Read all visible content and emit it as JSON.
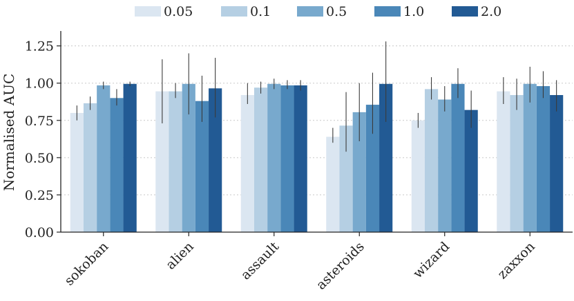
{
  "chart_data": {
    "type": "bar",
    "title": "",
    "xlabel": "",
    "ylabel": "Normalised AUC",
    "ylim": [
      0,
      1.35
    ],
    "yticks": [
      "0.00",
      "0.25",
      "0.50",
      "0.75",
      "1.00",
      "1.25"
    ],
    "ytick_values": [
      0,
      0.25,
      0.5,
      0.75,
      1.0,
      1.25
    ],
    "grid": "horizontal dotted",
    "legend_position": "top-center",
    "categories": [
      "sokoban",
      "alien",
      "assault",
      "asteroids",
      "wizard",
      "zaxxon"
    ],
    "series": [
      {
        "name": "0.05",
        "color": "#dbe6f1",
        "values": [
          0.8,
          0.945,
          0.92,
          0.64,
          0.75,
          0.945
        ],
        "err_low": [
          0.75,
          0.73,
          0.86,
          0.6,
          0.7,
          0.86
        ],
        "err_high": [
          0.85,
          1.16,
          1.0,
          0.7,
          0.8,
          1.04
        ]
      },
      {
        "name": "0.1",
        "color": "#b5cfe3",
        "values": [
          0.865,
          0.945,
          0.97,
          0.715,
          0.96,
          0.92
        ],
        "err_low": [
          0.82,
          0.9,
          0.93,
          0.54,
          0.89,
          0.82
        ],
        "err_high": [
          0.91,
          1.0,
          1.01,
          0.94,
          1.04,
          1.03
        ]
      },
      {
        "name": "0.5",
        "color": "#78a9cd",
        "values": [
          0.985,
          0.995,
          0.995,
          0.805,
          0.89,
          0.995
        ],
        "err_low": [
          0.96,
          0.79,
          0.96,
          0.61,
          0.81,
          0.87
        ],
        "err_high": [
          1.01,
          1.2,
          1.03,
          1.0,
          0.98,
          1.11
        ]
      },
      {
        "name": "1.0",
        "color": "#4a87b8",
        "values": [
          0.9,
          0.88,
          0.985,
          0.855,
          0.995,
          0.98
        ],
        "err_low": [
          0.85,
          0.74,
          0.96,
          0.66,
          0.9,
          0.9
        ],
        "err_high": [
          0.96,
          1.05,
          1.02,
          1.07,
          1.1,
          1.08
        ]
      },
      {
        "name": "2.0",
        "color": "#225a94",
        "values": [
          0.995,
          0.965,
          0.985,
          0.995,
          0.82,
          0.92
        ],
        "err_low": [
          0.98,
          0.77,
          0.95,
          0.74,
          0.7,
          0.81
        ],
        "err_high": [
          1.01,
          1.17,
          1.02,
          1.28,
          0.95,
          1.02
        ]
      }
    ]
  }
}
